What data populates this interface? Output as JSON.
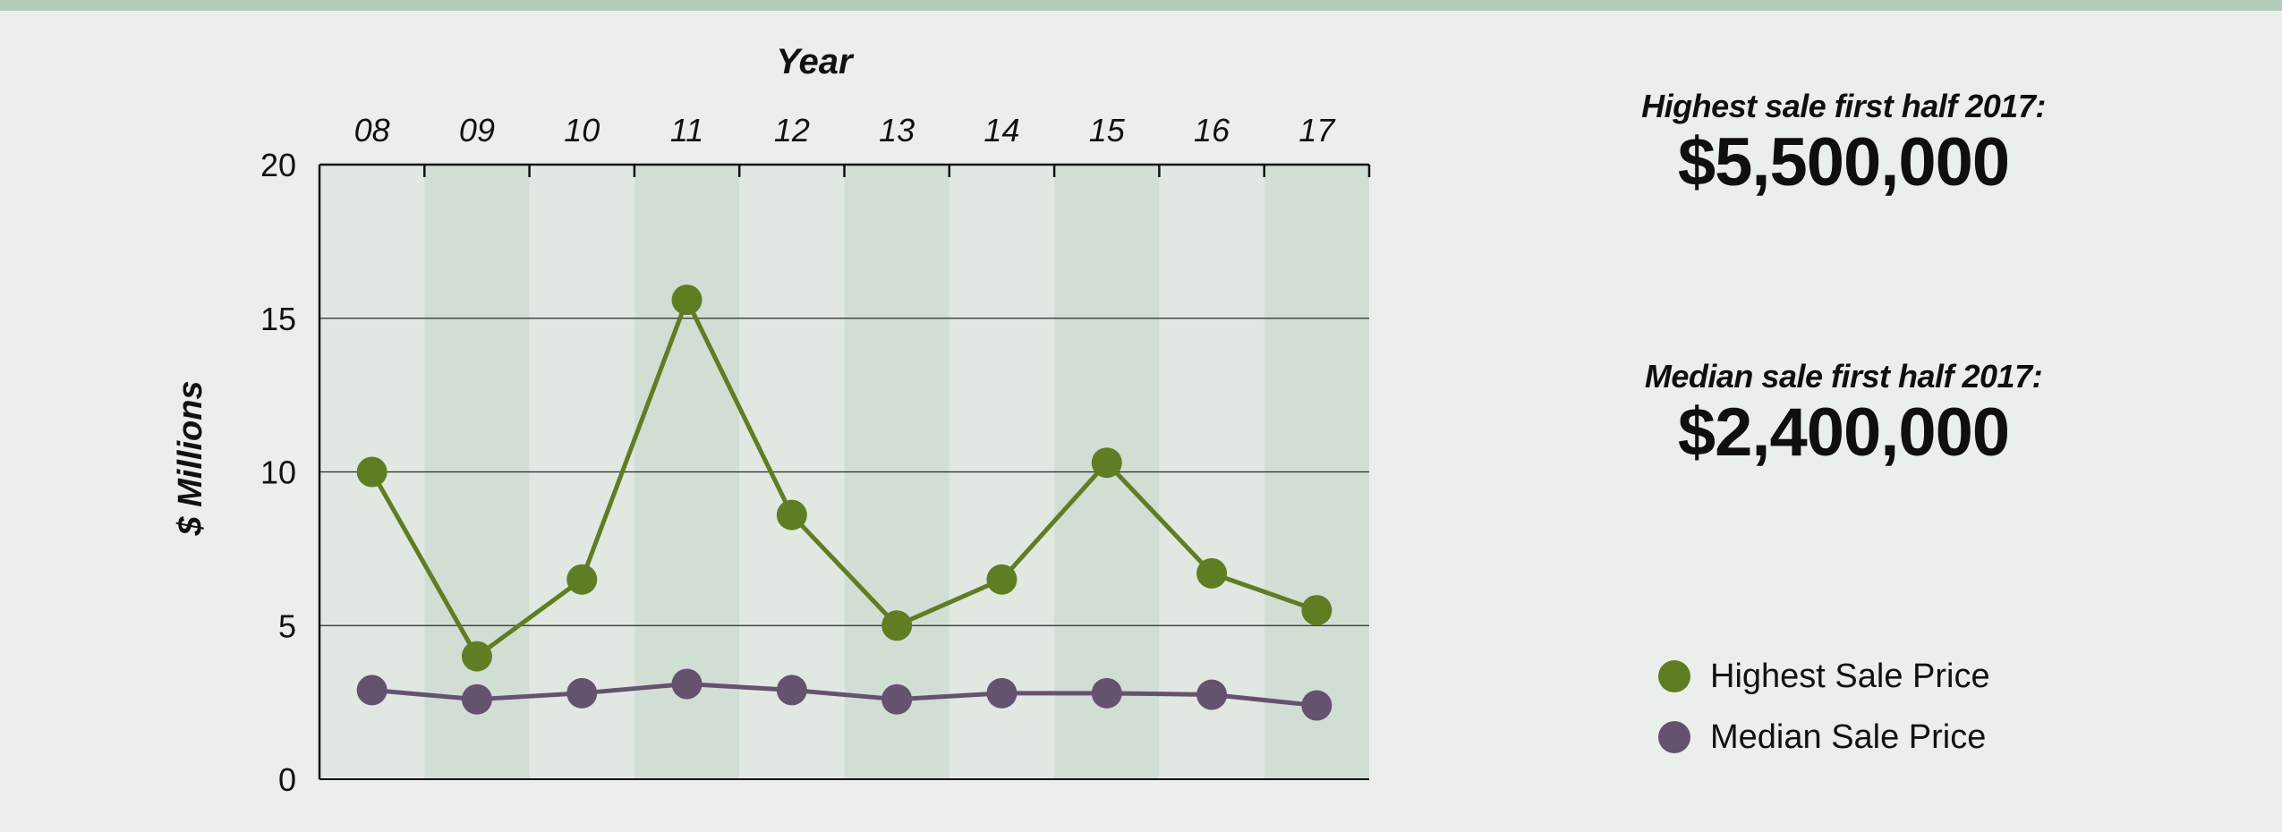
{
  "stats": {
    "highest": {
      "label": "Highest sale first half 2017:",
      "value": "$5,500,000"
    },
    "median": {
      "label": "Median sale first half 2017:",
      "value": "$2,400,000"
    }
  },
  "chart_data": {
    "type": "line",
    "xlabel": "Year",
    "ylabel": "$ Millions",
    "categories": [
      "08",
      "09",
      "10",
      "11",
      "12",
      "13",
      "14",
      "15",
      "16",
      "17"
    ],
    "ylim": [
      0,
      20
    ],
    "yticks": [
      0,
      5,
      10,
      15,
      20
    ],
    "grid": true,
    "legend_position": "right",
    "series": [
      {
        "name": "Highest Sale Price",
        "color": "#5f7d22",
        "values": [
          10.0,
          4.0,
          6.5,
          15.6,
          8.6,
          5.0,
          6.5,
          10.3,
          6.7,
          5.5
        ]
      },
      {
        "name": "Median Sale Price",
        "color": "#65526f",
        "values": [
          2.9,
          2.6,
          2.8,
          3.1,
          2.9,
          2.6,
          2.8,
          2.8,
          2.75,
          2.4
        ]
      }
    ]
  }
}
